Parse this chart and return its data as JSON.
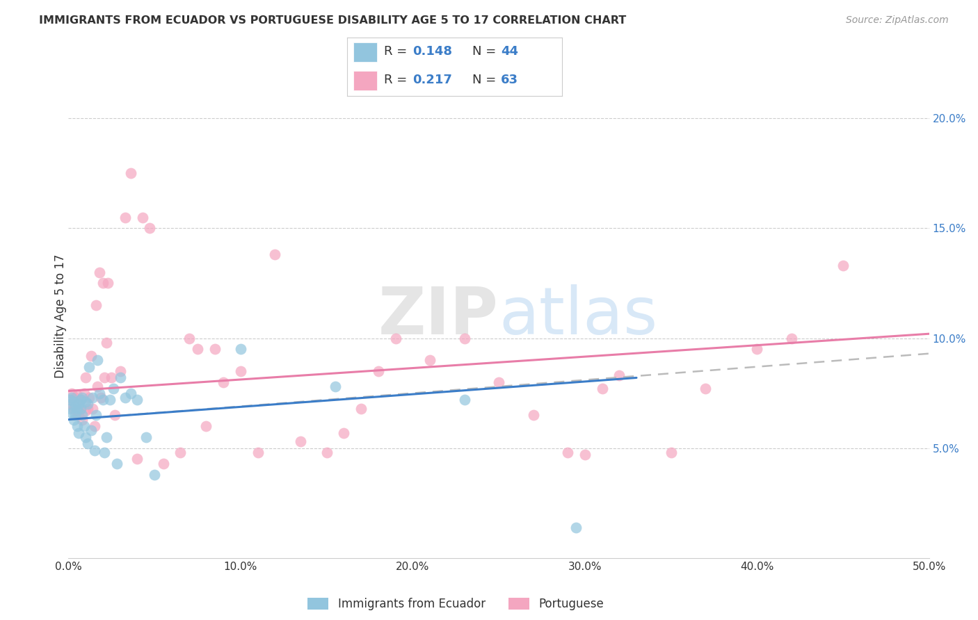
{
  "title": "IMMIGRANTS FROM ECUADOR VS PORTUGUESE DISABILITY AGE 5 TO 17 CORRELATION CHART",
  "source": "Source: ZipAtlas.com",
  "ylabel": "Disability Age 5 to 17",
  "xlim": [
    0,
    0.5
  ],
  "ylim": [
    0,
    0.22
  ],
  "xticks": [
    0.0,
    0.1,
    0.2,
    0.3,
    0.4,
    0.5
  ],
  "xticklabels": [
    "0.0%",
    "10.0%",
    "20.0%",
    "30.0%",
    "40.0%",
    "50.0%"
  ],
  "yticks_right": [
    0.05,
    0.1,
    0.15,
    0.2
  ],
  "yticklabels_right": [
    "5.0%",
    "10.0%",
    "15.0%",
    "20.0%"
  ],
  "ecuador_color": "#92c5de",
  "portuguese_color": "#f4a6c0",
  "ecuador_line_color": "#3b7dc8",
  "portuguese_line_color": "#e87da8",
  "dashed_line_color": "#bbbbbb",
  "text_color": "#333333",
  "blue_value_color": "#3b7dc8",
  "background_color": "#ffffff",
  "grid_color": "#cccccc",
  "source_color": "#999999",
  "watermark_zip_color": "#cccccc",
  "watermark_atlas_color": "#aaccee",
  "legend_r_ecuador": "0.148",
  "legend_n_ecuador": "44",
  "legend_r_portuguese": "0.217",
  "legend_n_portuguese": "63",
  "ecuador_scatter_x": [
    0.001,
    0.001,
    0.002,
    0.002,
    0.003,
    0.003,
    0.004,
    0.004,
    0.005,
    0.005,
    0.006,
    0.006,
    0.007,
    0.007,
    0.008,
    0.008,
    0.009,
    0.01,
    0.01,
    0.011,
    0.011,
    0.012,
    0.013,
    0.014,
    0.015,
    0.016,
    0.017,
    0.018,
    0.02,
    0.021,
    0.022,
    0.024,
    0.026,
    0.028,
    0.03,
    0.033,
    0.036,
    0.04,
    0.045,
    0.05,
    0.1,
    0.155,
    0.23,
    0.295
  ],
  "ecuador_scatter_y": [
    0.068,
    0.072,
    0.066,
    0.073,
    0.071,
    0.063,
    0.065,
    0.069,
    0.068,
    0.06,
    0.07,
    0.057,
    0.068,
    0.072,
    0.065,
    0.073,
    0.06,
    0.071,
    0.055,
    0.07,
    0.052,
    0.087,
    0.058,
    0.073,
    0.049,
    0.065,
    0.09,
    0.075,
    0.072,
    0.048,
    0.055,
    0.072,
    0.077,
    0.043,
    0.082,
    0.073,
    0.075,
    0.072,
    0.055,
    0.038,
    0.095,
    0.078,
    0.072,
    0.014
  ],
  "portuguese_scatter_x": [
    0.001,
    0.002,
    0.003,
    0.004,
    0.005,
    0.005,
    0.006,
    0.007,
    0.007,
    0.008,
    0.009,
    0.01,
    0.01,
    0.011,
    0.012,
    0.013,
    0.014,
    0.015,
    0.016,
    0.017,
    0.018,
    0.019,
    0.02,
    0.021,
    0.022,
    0.023,
    0.025,
    0.027,
    0.03,
    0.033,
    0.036,
    0.04,
    0.043,
    0.047,
    0.055,
    0.065,
    0.075,
    0.085,
    0.1,
    0.11,
    0.12,
    0.135,
    0.15,
    0.17,
    0.19,
    0.21,
    0.23,
    0.25,
    0.27,
    0.3,
    0.32,
    0.35,
    0.37,
    0.4,
    0.42,
    0.45,
    0.07,
    0.08,
    0.09,
    0.16,
    0.18,
    0.29,
    0.31
  ],
  "portuguese_scatter_y": [
    0.07,
    0.075,
    0.068,
    0.073,
    0.065,
    0.074,
    0.065,
    0.072,
    0.068,
    0.063,
    0.075,
    0.067,
    0.082,
    0.068,
    0.073,
    0.092,
    0.068,
    0.06,
    0.115,
    0.078,
    0.13,
    0.073,
    0.125,
    0.082,
    0.098,
    0.125,
    0.082,
    0.065,
    0.085,
    0.155,
    0.175,
    0.045,
    0.155,
    0.15,
    0.043,
    0.048,
    0.095,
    0.095,
    0.085,
    0.048,
    0.138,
    0.053,
    0.048,
    0.068,
    0.1,
    0.09,
    0.1,
    0.08,
    0.065,
    0.047,
    0.083,
    0.048,
    0.077,
    0.095,
    0.1,
    0.133,
    0.1,
    0.06,
    0.08,
    0.057,
    0.085,
    0.048,
    0.077
  ],
  "ecuador_trend_x": [
    0.0,
    0.33
  ],
  "ecuador_trend_y": [
    0.063,
    0.082
  ],
  "portuguese_trend_x": [
    0.0,
    0.5
  ],
  "portuguese_trend_y": [
    0.076,
    0.102
  ],
  "dashed_trend_x": [
    0.0,
    0.5
  ],
  "dashed_trend_y": [
    0.063,
    0.093
  ]
}
